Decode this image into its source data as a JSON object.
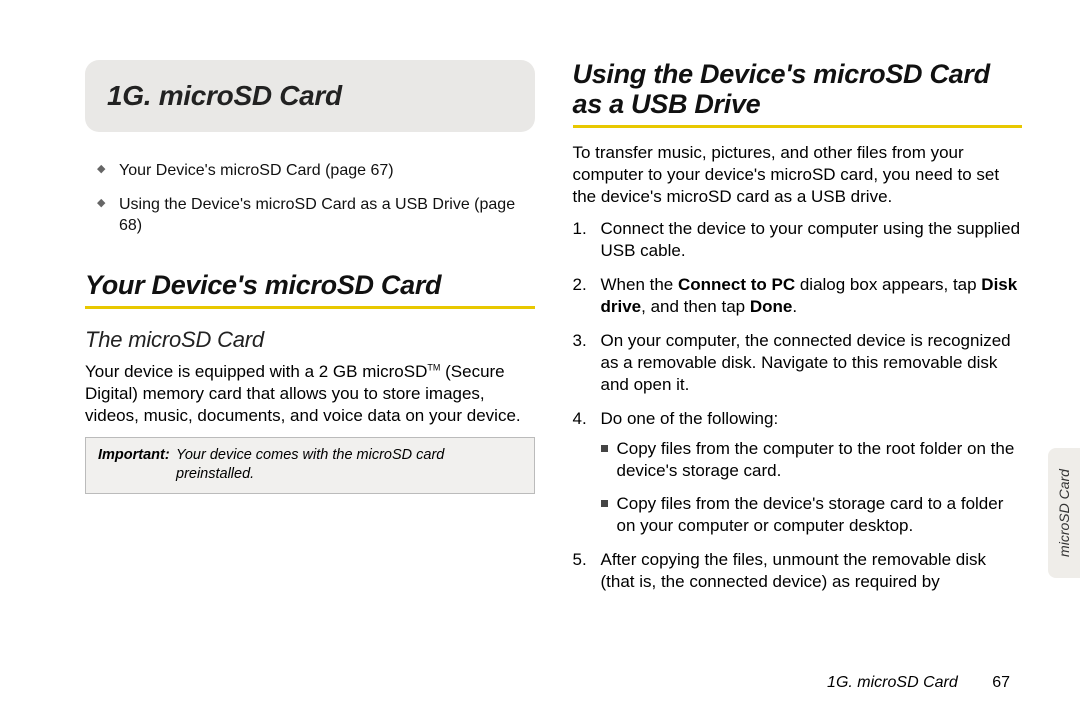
{
  "chapter": {
    "title": "1G. microSD Card"
  },
  "toc": [
    "Your Device's microSD Card (page 67)",
    "Using the Device's microSD Card as a USB Drive (page 68)"
  ],
  "left": {
    "h2": "Your Device's microSD Card",
    "h3": "The microSD Card",
    "para_before_tm": "Your device is equipped with a 2 GB microSD",
    "tm": "TM",
    "para_after_tm": " (Secure Digital) memory card that allows you to store images, videos, music, documents, and voice data on your device.",
    "note_label": "Important:",
    "note_text": "Your device comes with the microSD card preinstalled."
  },
  "right": {
    "h2": "Using the Device's microSD Card as a USB Drive",
    "intro": "To transfer music, pictures, and other files from your computer to your device's microSD card, you need to set the device's microSD card as a USB drive.",
    "steps": {
      "s1": "Connect the device to your computer using the supplied USB cable.",
      "s2a": "When the ",
      "s2b": "Connect to PC",
      "s2c": " dialog box appears, tap ",
      "s2d": "Disk drive",
      "s2e": ", and then tap ",
      "s2f": "Done",
      "s2g": ".",
      "s3": "On your computer, the connected device is recognized as a removable disk. Navigate to this removable disk and open it.",
      "s4": "Do one of the following:",
      "s4_sub1": "Copy files from the computer to the root folder on the device's storage card.",
      "s4_sub2": "Copy files from the device's storage card to a folder on your computer or computer desktop.",
      "s5": "After copying the files, unmount the removable disk (that is, the connected device) as required by"
    }
  },
  "footer": {
    "title": "1G. microSD Card",
    "page": "67"
  },
  "sidetab": "microSD Card",
  "colors": {
    "accent": "#e8c800",
    "tab_bg": "#e9e8e6",
    "note_bg": "#f1f0ee"
  }
}
